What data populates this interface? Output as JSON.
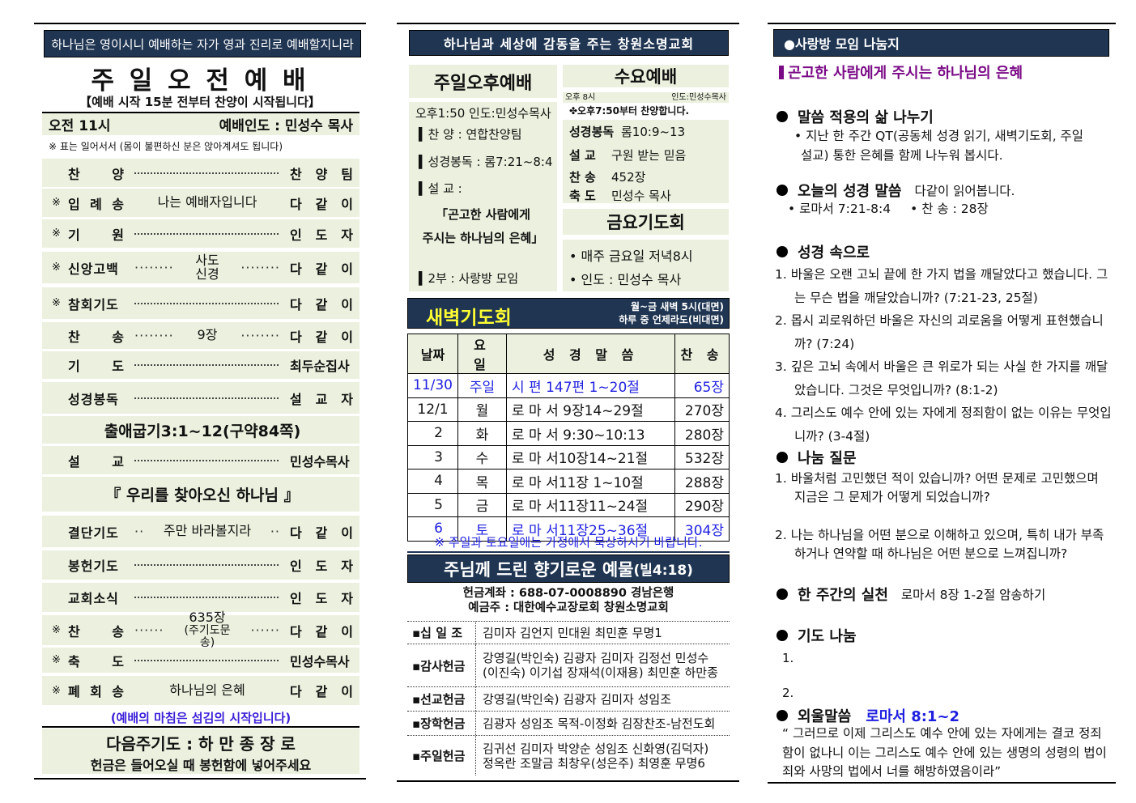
{
  "left": {
    "banner": "하나님은 영이시니 예배하는 자가 영과 진리로 예배할지니라",
    "title": "주 일 오 전 예 배",
    "subtitle": "【예배 시작 15분 전부터 찬양이 시작됩니다】",
    "time": "오전 11시",
    "leader": "예배인도 : 민성수 목사",
    "note": "※ 표는 일어서서 (몸이 불편하신 분은 앉아계셔도 됩니다)",
    "order": [
      {
        "mark": "",
        "label": "찬 양",
        "type": "leader",
        "right": "찬 양 팀"
      },
      {
        "mark": "※",
        "label": "입 례 송",
        "type": "text",
        "middle": "나는 예배자입니다",
        "right": "다 같 이"
      },
      {
        "mark": "※",
        "label": "기 원",
        "type": "leader",
        "right": "인 도 자"
      },
      {
        "mark": "※",
        "label": "신앙고백",
        "type": "dots",
        "dots": "········",
        "middle": "사도신경",
        "right": "다 같 이"
      },
      {
        "mark": "※",
        "label": "참회기도",
        "type": "leader",
        "right": "다 같 이"
      },
      {
        "mark": "",
        "label": "찬 송",
        "type": "dots",
        "dots": "········",
        "middle": "9장",
        "right": "다 같 이"
      },
      {
        "mark": "",
        "label": "기 도",
        "type": "leader",
        "right": "최두순집사"
      },
      {
        "mark": "",
        "label": "성경봉독",
        "type": "leader",
        "right": "설 교 자"
      },
      {
        "type": "center",
        "middle": "출애굽기3:1~12(구약84쪽)"
      },
      {
        "mark": "",
        "label": "설 교",
        "type": "leader",
        "right": "민성수목사"
      },
      {
        "type": "center",
        "middle": "『 우리를 찾아오신 하나님 』"
      },
      {
        "mark": "",
        "label": "결단기도",
        "type": "dots",
        "dots": "··",
        "middle": "주만 바라볼지라",
        "right": "다 같 이"
      },
      {
        "mark": "",
        "label": "봉헌기도",
        "type": "leader",
        "right": "인 도 자"
      },
      {
        "mark": "",
        "label": "교회소식",
        "type": "leader",
        "right": "인 도 자"
      },
      {
        "mark": "※",
        "label": "찬 송",
        "type": "dots",
        "dots": "······",
        "middle": "635장",
        "sub": "(주기도문송)",
        "right": "다 같 이"
      },
      {
        "mark": "※",
        "label": "축 도",
        "type": "leader",
        "right": "민성수목사"
      },
      {
        "mark": "※",
        "label": "폐 회 송",
        "type": "text",
        "middle": "하나님의 은혜",
        "right": "다 같 이"
      }
    ],
    "closing": "(예배의 마침은 섬김의 시작입니다)",
    "next_prayer": "다음주기도 : 하  만  종  장 로",
    "offering_note": "헌금은 들어오실 때 봉헌함에 넣어주세요"
  },
  "middle": {
    "banner": "하나님과 세상에 감동을 주는 창원소명교회",
    "sunday_pm": {
      "title": "주일오후예배",
      "time": "오후1:50 인도:민성수목사",
      "items": [
        "▍찬 양 : 연합찬양팀",
        "▍성경봉독 : 롬7:21~8:4",
        "▍설 교 :"
      ],
      "sermon_line1": "「곤고한 사람에게",
      "sermon_line2": "주시는 하나님의 은혜」",
      "part2": "▍2부 : 사랑방 모임"
    },
    "wednesday": {
      "title": "수요예배",
      "time": "오후 8시",
      "leader": "인도:민성수목사",
      "praise": "✤오후7:50부터 찬양합니다.",
      "rows": [
        {
          "label": "성경봉독",
          "value": "롬10:9~13"
        },
        {
          "label": "설 교",
          "value": "구원 받는 믿음"
        },
        {
          "label": "찬 송",
          "value": "452장"
        },
        {
          "label": "축 도",
          "value": "민성수 목사"
        }
      ]
    },
    "friday": {
      "title": "금요기도회",
      "items": [
        "• 매주 금요일 저녁8시",
        "• 인도 : 민성수 목사"
      ]
    },
    "dawn": {
      "title": "새벽기도회",
      "info1": "월~금 새벽 5시(대면)",
      "info2": "하루 중 언제라도(비대면)",
      "headers": [
        "날짜",
        "요 일",
        "성 경  말 씀",
        "찬 송"
      ],
      "rows": [
        {
          "date": "11/30",
          "day": "주일",
          "verse": "시 편 147편 1~20절",
          "hymn": "65장",
          "highlight": true
        },
        {
          "date": "12/1",
          "day": "월",
          "verse": "로 마 서 9장14~29절",
          "hymn": "270장",
          "highlight": false
        },
        {
          "date": "2",
          "day": "화",
          "verse": "로 마 서 9:30~10:13",
          "hymn": "280장",
          "highlight": false
        },
        {
          "date": "3",
          "day": "수",
          "verse": "로 마 서10장14~21절",
          "hymn": "532장",
          "highlight": false
        },
        {
          "date": "4",
          "day": "목",
          "verse": "로 마 서11장 1~10절",
          "hymn": "288장",
          "highlight": false
        },
        {
          "date": "5",
          "day": "금",
          "verse": "로 마 서11장11~24절",
          "hymn": "290장",
          "highlight": false
        },
        {
          "date": "6",
          "day": "토",
          "verse": "로 마 서11장25~36절",
          "hymn": "304장",
          "highlight": true
        }
      ],
      "note": "※ 주일과 토요일에는 가정에서 묵상하시기 바랍니다."
    },
    "offering": {
      "title": "주님께 드린 향기로운 예물",
      "title_ref": "(빌4:18)",
      "account": "헌금계좌 : 688-07-0008890   경남은행",
      "holder": "예금주 : 대한예수교장로회 창원소명교회",
      "rows": [
        {
          "label": "▪십 일 조",
          "lines": [
            "김미자 김언지 민대원 최민훈 무명1"
          ]
        },
        {
          "label": "▪감사헌금",
          "lines": [
            "강영길(박인숙) 김광자 김미자 김정선 민성수",
            "(이진숙) 이기섭 장재석(이재용) 최민훈 하만종"
          ]
        },
        {
          "label": "▪선교헌금",
          "lines": [
            "강영길(박인숙) 김광자 김미자 성임조"
          ]
        },
        {
          "label": "▪장학헌금",
          "lines": [
            "김광자 성임조 목적-이정화 김장찬조-남전도회"
          ]
        },
        {
          "label": "▪주일헌금",
          "lines": [
            "김귀선 김미자 박양순 성임조 신화영(김덕자)",
            "정옥란 조말금 최창우(성은주) 최영훈 무명6"
          ]
        }
      ]
    }
  },
  "right": {
    "banner": "●사랑방 모임 나눔지",
    "theme": "곤고한 사람에게 주시는 하나님의 은혜",
    "s1_title": "말씀 적용의 삶 나누기",
    "s1_text": "• 지난 한 주간 QT(공동체 성경 읽기, 새벽기도회, 주일 설교) 통한 은혜를 함께 나누워 봅시다.",
    "s2_title": "오늘의 성경 말씀",
    "s2_note": "다같이 읽어봅니다.",
    "s2_verse": "• 로마서 7:21-8:4",
    "s2_hymn": "• 찬 송 : 28장",
    "s3_title": "성경 속으로",
    "s3_items": [
      "1. 바울은 오랜 고뇌 끝에 한 가지 법을 깨달았다고 했습니다. 그는 무슨 법을 깨달았습니까? (7:21-23, 25절)",
      "2. 몹시 괴로워하던 바울은 자신의 괴로움을 어떻게 표현했습니까? (7:24)",
      "3. 깊은 고뇌 속에서 바울은 큰 위로가 되는 사실 한 가지를 깨달았습니다. 그것은 무엇입니까? (8:1-2)",
      "4. 그리스도 예수 안에 있는 자에게 정죄함이 없는 이유는 무엇입니까? (3-4절)"
    ],
    "s4_title": "나눔 질문",
    "s4_items": [
      "1. 바울처럼 고민했던 적이 있습니까? 어떤 문제로 고민했으며 지금은 그 문제가 어떻게 되었습니까?",
      "2. 나는 하나님을 어떤 분으로 이해하고 있으며, 특히 내가 부족하거나 연약할 때 하나님은 어떤 분으로 느껴집니까?"
    ],
    "s5_title": "한 주간의 실천",
    "s5_text": "로마서 8장 1-2절 암송하기",
    "s6_title": "기도 나눔",
    "s6_items": [
      "1.",
      "2."
    ],
    "s7_title": "외울말씀",
    "s7_ref": "로마서 8:1~2",
    "s7_text": "“ 그러므로 이제 그리스도 예수 안에 있는 자에게는 결코 정죄함이 없나니 이는 그리스도 예수 안에 있는 생명의 성령의 법이 죄와 사망의 법에서 너를 해방하였음이라”"
  },
  "colors": {
    "navy": "#1f3552",
    "panel": "#ebf1de",
    "accent_blue": "#1f1fe0",
    "purple": "#7a0a86",
    "dawn_title": "#ffff33"
  }
}
